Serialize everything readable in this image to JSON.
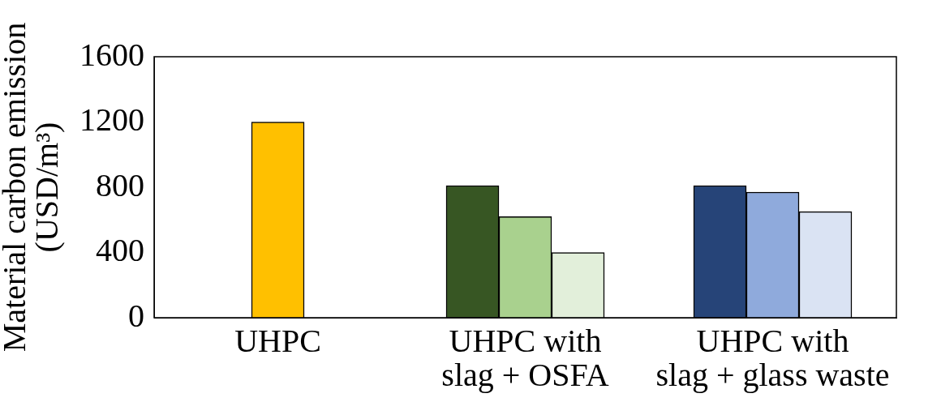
{
  "chart_data": {
    "type": "bar",
    "ylabel": "Material carbon emission\n(USD/m³)",
    "categories": [
      "UHPC",
      "UHPC with\nslag + OSFA",
      "UHPC with\nslag + glass waste"
    ],
    "series": [
      {
        "colors": [
          "#ffc000",
          "#375623",
          "#264478"
        ],
        "values": [
          1200,
          810,
          810
        ]
      },
      {
        "colors": [
          null,
          "#a9d18e",
          "#8faadc"
        ],
        "values": [
          null,
          620,
          770
        ]
      },
      {
        "colors": [
          null,
          "#e2efda",
          "#dae3f3"
        ],
        "values": [
          null,
          400,
          650
        ]
      }
    ],
    "ylim": [
      0,
      1600
    ],
    "yticks": [
      0,
      400,
      800,
      1200,
      1600
    ],
    "grid": false,
    "legend": false
  }
}
